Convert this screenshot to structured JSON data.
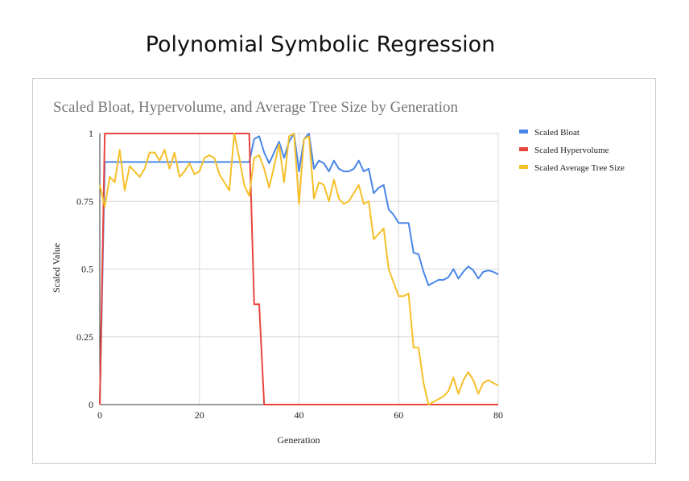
{
  "page": {
    "title": "Polynomial Symbolic Regression"
  },
  "chart_data": {
    "type": "line",
    "title": "Scaled Bloat, Hypervolume, and Average Tree Size by Generation",
    "xlabel": "Generation",
    "ylabel": "Scaled Value",
    "xlim": [
      0,
      80
    ],
    "ylim": [
      0,
      1
    ],
    "xticks": [
      "0",
      "20",
      "40",
      "60",
      "80"
    ],
    "yticks": [
      "0",
      "0.25",
      "0.5",
      "0.75",
      "1"
    ],
    "grid": true,
    "legend_position": "right",
    "x": [
      0,
      1,
      2,
      3,
      4,
      5,
      6,
      7,
      8,
      9,
      10,
      11,
      12,
      13,
      14,
      15,
      16,
      17,
      18,
      19,
      20,
      21,
      22,
      23,
      24,
      25,
      26,
      27,
      28,
      29,
      30,
      31,
      32,
      33,
      34,
      35,
      36,
      37,
      38,
      39,
      40,
      41,
      42,
      43,
      44,
      45,
      46,
      47,
      48,
      49,
      50,
      51,
      52,
      53,
      54,
      55,
      56,
      57,
      58,
      59,
      60,
      61,
      62,
      63,
      64,
      65,
      66,
      67,
      68,
      69,
      70,
      71,
      72,
      73,
      74,
      75,
      76,
      77,
      78,
      79,
      80
    ],
    "series": [
      {
        "name": "Scaled Bloat",
        "color": "#4a86e8",
        "values": [
          0,
          0.895,
          0.895,
          0.895,
          0.895,
          0.895,
          0.895,
          0.895,
          0.895,
          0.895,
          0.895,
          0.895,
          0.895,
          0.895,
          0.895,
          0.895,
          0.895,
          0.895,
          0.895,
          0.895,
          0.895,
          0.895,
          0.895,
          0.895,
          0.895,
          0.895,
          0.895,
          0.895,
          0.895,
          0.895,
          0.895,
          0.98,
          0.99,
          0.93,
          0.89,
          0.93,
          0.97,
          0.91,
          0.97,
          1.0,
          0.86,
          0.98,
          1.0,
          0.87,
          0.9,
          0.89,
          0.86,
          0.9,
          0.87,
          0.86,
          0.86,
          0.87,
          0.9,
          0.86,
          0.87,
          0.78,
          0.8,
          0.81,
          0.72,
          0.7,
          0.67,
          0.67,
          0.67,
          0.56,
          0.555,
          0.49,
          0.44,
          0.45,
          0.46,
          0.46,
          0.47,
          0.5,
          0.465,
          0.49,
          0.51,
          0.495,
          0.465,
          0.49,
          0.495,
          0.49,
          0.48
        ]
      },
      {
        "name": "Scaled Hypervolume",
        "color": "#e8453c",
        "values": [
          0,
          1,
          1,
          1,
          1,
          1,
          1,
          1,
          1,
          1,
          1,
          1,
          1,
          1,
          1,
          1,
          1,
          1,
          1,
          1,
          1,
          1,
          1,
          1,
          1,
          1,
          1,
          1,
          1,
          1,
          1,
          0.37,
          0.37,
          0,
          0,
          0,
          0,
          0,
          0,
          0,
          0,
          0,
          0,
          0,
          0,
          0,
          0,
          0,
          0,
          0,
          0,
          0,
          0,
          0,
          0,
          0,
          0,
          0,
          0,
          0,
          0,
          0,
          0,
          0,
          0,
          0,
          0,
          0,
          0,
          0,
          0,
          0,
          0,
          0,
          0,
          0,
          0,
          0,
          0,
          0,
          0
        ]
      },
      {
        "name": "Scaled Average Tree Size",
        "color": "#f6bf2a",
        "values": [
          0.81,
          0.73,
          0.84,
          0.82,
          0.94,
          0.79,
          0.88,
          0.86,
          0.84,
          0.87,
          0.93,
          0.93,
          0.9,
          0.94,
          0.87,
          0.93,
          0.84,
          0.86,
          0.89,
          0.85,
          0.86,
          0.91,
          0.92,
          0.91,
          0.85,
          0.82,
          0.79,
          1.0,
          0.91,
          0.81,
          0.77,
          0.91,
          0.92,
          0.87,
          0.8,
          0.88,
          0.96,
          0.82,
          0.99,
          1.0,
          0.74,
          0.98,
          0.99,
          0.76,
          0.82,
          0.81,
          0.75,
          0.83,
          0.76,
          0.74,
          0.75,
          0.78,
          0.81,
          0.74,
          0.75,
          0.61,
          0.63,
          0.65,
          0.5,
          0.45,
          0.4,
          0.4,
          0.41,
          0.21,
          0.21,
          0.08,
          0.0,
          0.01,
          0.02,
          0.03,
          0.05,
          0.1,
          0.04,
          0.09,
          0.12,
          0.09,
          0.04,
          0.08,
          0.09,
          0.08,
          0.07
        ]
      }
    ]
  }
}
